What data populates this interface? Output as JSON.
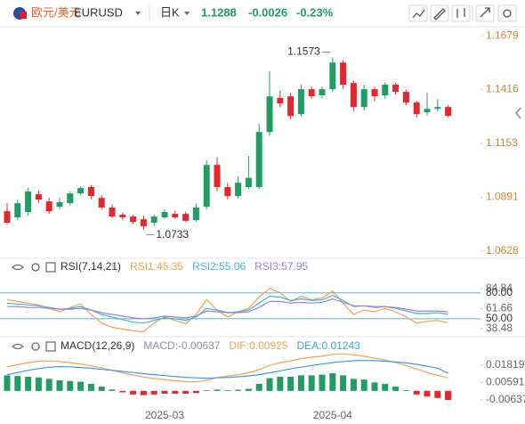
{
  "header": {
    "pair": "欧元/美元",
    "symbol": "EURUSD",
    "period": "日K",
    "last": "1.1288",
    "change": "-0.0026",
    "change_pct": "-0.23%"
  },
  "chart_data": [
    {
      "type": "candlestick",
      "up_color": "#1f9d63",
      "down_color": "#e5262d",
      "open": [
        1.0822,
        1.0792,
        1.0818,
        1.0905,
        1.087,
        1.0844,
        1.0861,
        1.0909,
        1.094,
        1.0887,
        1.084,
        1.0805,
        1.0796,
        1.0783,
        1.0766,
        1.0792,
        1.0809,
        1.0809,
        1.0779,
        1.0844,
        1.1048,
        1.094,
        1.0896,
        1.094,
        1.094,
        1.1209,
        1.1375,
        1.1383,
        1.1296,
        1.1418,
        1.1388,
        1.1418,
        1.1548,
        1.1448,
        1.1331,
        1.1418,
        1.1388,
        1.144,
        1.1405,
        1.1353,
        1.1305,
        1.1322,
        1.1331
      ],
      "high": [
        1.0862,
        1.0879,
        1.0936,
        1.0923,
        1.0888,
        1.0887,
        1.092,
        1.0945,
        1.095,
        1.09,
        1.0855,
        1.0815,
        1.0805,
        1.08,
        1.0805,
        1.083,
        1.0825,
        1.082,
        1.086,
        1.107,
        1.1085,
        1.096,
        1.099,
        1.1092,
        1.125,
        1.1505,
        1.141,
        1.14,
        1.144,
        1.143,
        1.143,
        1.1573,
        1.156,
        1.146,
        1.144,
        1.143,
        1.145,
        1.145,
        1.1415,
        1.136,
        1.14,
        1.137,
        1.134
      ],
      "low": [
        1.0758,
        1.0779,
        1.0801,
        1.0862,
        1.081,
        1.083,
        1.085,
        1.09,
        1.088,
        1.083,
        1.079,
        1.078,
        1.076,
        1.0733,
        1.075,
        1.0785,
        1.0785,
        1.077,
        1.077,
        1.083,
        1.092,
        1.088,
        1.0885,
        1.093,
        1.093,
        1.119,
        1.133,
        1.127,
        1.1285,
        1.137,
        1.1375,
        1.1405,
        1.142,
        1.131,
        1.1315,
        1.136,
        1.137,
        1.139,
        1.134,
        1.128,
        1.129,
        1.131,
        1.128
      ],
      "close": [
        1.0766,
        1.0861,
        1.0918,
        1.0879,
        1.0822,
        1.0866,
        1.0909,
        1.0935,
        1.0896,
        1.084,
        1.0796,
        1.0792,
        1.077,
        1.0748,
        1.0796,
        1.0818,
        1.0792,
        1.0775,
        1.084,
        1.1048,
        1.094,
        1.0896,
        1.0961,
        1.0985,
        1.1209,
        1.1383,
        1.1348,
        1.1287,
        1.1418,
        1.1383,
        1.1418,
        1.1548,
        1.144,
        1.1331,
        1.1418,
        1.1383,
        1.144,
        1.1405,
        1.1353,
        1.1296,
        1.1322,
        1.1331,
        1.1288
      ],
      "ylim": [
        1.0592,
        1.1723
      ],
      "yticks": [
        1.1679,
        1.1416,
        1.1153,
        1.0891,
        1.0628
      ]
    },
    {
      "type": "line",
      "title": "RSI(7,14,21)",
      "series": [
        {
          "name": "RSI1:45.35",
          "color": "#f0a24e",
          "values": [
            72,
            70,
            68,
            66,
            62,
            58,
            63,
            67,
            55,
            45,
            40,
            38,
            36,
            35,
            45,
            52,
            48,
            44,
            55,
            72,
            60,
            52,
            58,
            62,
            75,
            85,
            80,
            70,
            76,
            72,
            74,
            82,
            68,
            55,
            60,
            58,
            62,
            58,
            52,
            45,
            47,
            48,
            45.35
          ]
        },
        {
          "name": "RSI2:55.06",
          "color": "#3fb6d2",
          "values": [
            68,
            67,
            66,
            65,
            63,
            61,
            62,
            64,
            60,
            55,
            52,
            49,
            46,
            45,
            48,
            51,
            50,
            48,
            52,
            62,
            60,
            57,
            58,
            60,
            68,
            76,
            75,
            71,
            73,
            71,
            72,
            77,
            71,
            64,
            65,
            63,
            64,
            62,
            59,
            56,
            56,
            57,
            55.06
          ]
        },
        {
          "name": "RSI3:57.95",
          "color": "#9a80d8",
          "values": [
            64,
            64,
            63,
            63,
            62,
            61,
            61,
            62,
            60,
            57,
            55,
            53,
            51,
            50,
            51,
            53,
            52,
            51,
            53,
            59,
            58,
            57,
            57,
            58,
            63,
            70,
            70,
            68,
            69,
            68,
            69,
            73,
            69,
            65,
            65,
            64,
            64,
            63,
            61,
            59,
            59,
            59,
            57.95
          ]
        }
      ],
      "levels": [
        {
          "value": 80,
          "label": "80.00"
        },
        {
          "value": 50,
          "label": "50.00"
        }
      ],
      "level_color": "#5ab4d6",
      "ylim": [
        32.3,
        104.4
      ],
      "yticks": [
        84.84,
        61.66,
        38.48
      ]
    },
    {
      "type": "macd",
      "title": "MACD(12,26,9)",
      "up_color": "#1f9d63",
      "down_color": "#e5262d",
      "x": [
        null,
        null,
        null,
        null,
        null,
        null,
        null,
        null,
        null,
        null,
        null,
        null,
        null,
        null,
        null,
        "2025-03",
        null,
        null,
        null,
        null,
        null,
        null,
        null,
        null,
        null,
        null,
        null,
        null,
        null,
        null,
        null,
        "2025-04",
        null,
        null,
        null,
        null,
        null,
        null,
        null,
        null,
        null,
        null,
        null
      ],
      "series": [
        {
          "name": "MACD:-0.00637",
          "kind": "bar",
          "color": "#8a8fa0",
          "values": [
            0.011,
            0.0105,
            0.01,
            0.0095,
            0.0085,
            0.0075,
            0.007,
            0.0065,
            0.005,
            0.003,
            0.001,
            -0.001,
            -0.0025,
            -0.003,
            -0.0025,
            -0.002,
            -0.002,
            -0.002,
            -0.0015,
            0.0005,
            0.001,
            0.0005,
            0.0008,
            0.0015,
            0.005,
            0.009,
            0.01,
            0.01,
            0.011,
            0.011,
            0.0115,
            0.0125,
            0.011,
            0.0085,
            0.008,
            0.006,
            0.005,
            0.003,
            0.0005,
            -0.0025,
            -0.004,
            -0.005,
            -0.00637
          ]
        },
        {
          "name": "DIF:0.00925",
          "kind": "line",
          "color": "#f0a24e",
          "values": [
            0.017,
            0.0185,
            0.02,
            0.021,
            0.0212,
            0.0208,
            0.02,
            0.019,
            0.0178,
            0.0162,
            0.0145,
            0.0128,
            0.0112,
            0.0098,
            0.0088,
            0.008,
            0.0072,
            0.0066,
            0.0064,
            0.0075,
            0.0095,
            0.0105,
            0.0115,
            0.0128,
            0.015,
            0.018,
            0.02,
            0.0212,
            0.0228,
            0.0238,
            0.0246,
            0.0258,
            0.0262,
            0.0255,
            0.0245,
            0.0232,
            0.0218,
            0.02,
            0.018,
            0.0155,
            0.013,
            0.011,
            0.00925
          ]
        },
        {
          "name": "DEA:0.01243",
          "kind": "line",
          "color": "#3a9fe0",
          "values": [
            0.0115,
            0.013,
            0.0145,
            0.0158,
            0.0168,
            0.0172,
            0.017,
            0.0165,
            0.016,
            0.0152,
            0.0145,
            0.0138,
            0.013,
            0.0122,
            0.0115,
            0.0108,
            0.0102,
            0.0096,
            0.0092,
            0.009,
            0.0092,
            0.0095,
            0.01,
            0.0106,
            0.0115,
            0.0128,
            0.0142,
            0.0155,
            0.0168,
            0.018,
            0.019,
            0.02,
            0.0208,
            0.0213,
            0.0215,
            0.0214,
            0.021,
            0.0205,
            0.0198,
            0.0188,
            0.0175,
            0.016,
            0.01243
          ]
        }
      ],
      "ylim": [
        -0.0133,
        0.0276
      ],
      "yticks": [
        0.01819,
        0.00591,
        -0.00637
      ]
    }
  ]
}
